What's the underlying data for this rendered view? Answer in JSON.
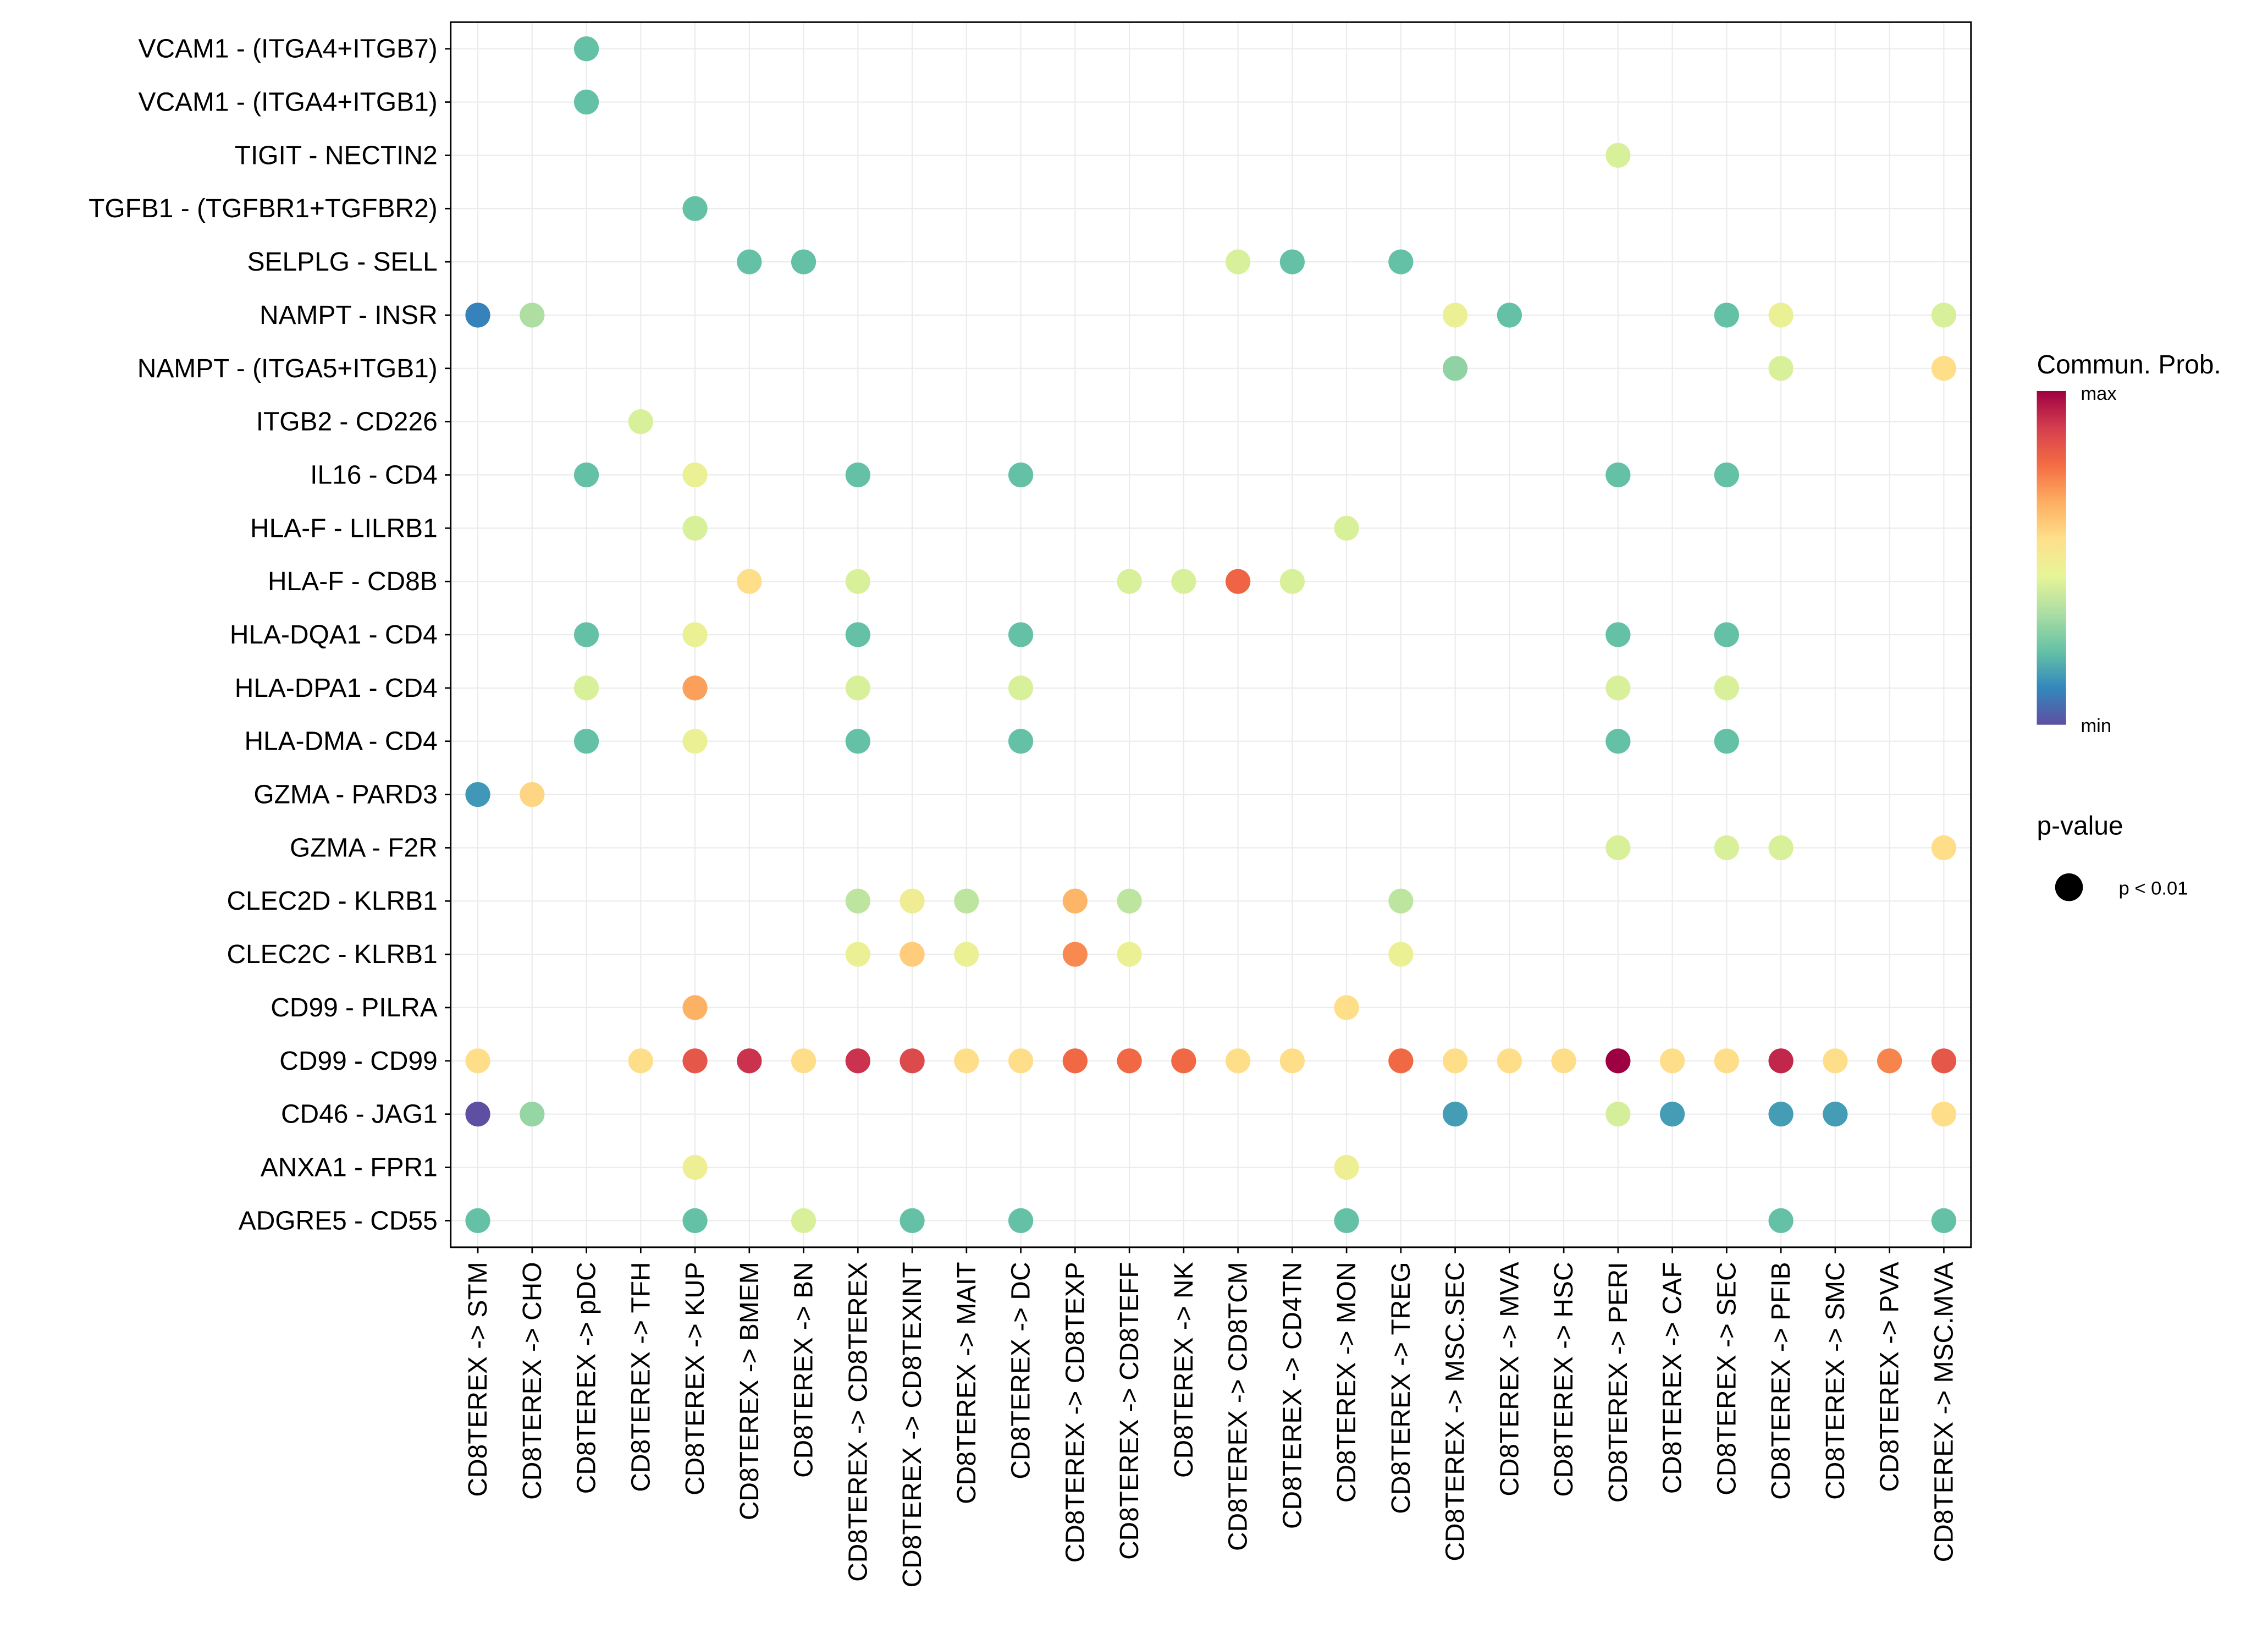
{
  "chart_data": {
    "type": "scatter",
    "subtype": "dot-plot",
    "title": "",
    "xlabel": "",
    "ylabel": "",
    "grid": true,
    "x": [
      "CD8TEREX -> STM",
      "CD8TEREX -> CHO",
      "CD8TEREX -> pDC",
      "CD8TEREX -> TFH",
      "CD8TEREX -> KUP",
      "CD8TEREX -> BMEM",
      "CD8TEREX -> BN",
      "CD8TEREX -> CD8TEREX",
      "CD8TEREX -> CD8TEXINT",
      "CD8TEREX -> MAIT",
      "CD8TEREX -> DC",
      "CD8TEREX -> CD8TEXP",
      "CD8TEREX -> CD8TEFF",
      "CD8TEREX -> NK",
      "CD8TEREX -> CD8TCM",
      "CD8TEREX -> CD4TN",
      "CD8TEREX -> MON",
      "CD8TEREX -> TREG",
      "CD8TEREX -> MSC.SEC",
      "CD8TEREX -> MVA",
      "CD8TEREX -> HSC",
      "CD8TEREX -> PERI",
      "CD8TEREX -> CAF",
      "CD8TEREX -> SEC",
      "CD8TEREX -> PFIB",
      "CD8TEREX -> SMC",
      "CD8TEREX -> PVA",
      "CD8TEREX -> MSC.MVA"
    ],
    "y": [
      "VCAM1 - (ITGA4+ITGB7)",
      "VCAM1 - (ITGA4+ITGB1)",
      "TIGIT - NECTIN2",
      "TGFB1 - (TGFBR1+TGFBR2)",
      "SELPLG - SELL",
      "NAMPT - INSR",
      "NAMPT - (ITGA5+ITGB1)",
      "ITGB2 - CD226",
      "IL16 - CD4",
      "HLA-F - LILRB1",
      "HLA-F - CD8B",
      "HLA-DQA1 - CD4",
      "HLA-DPA1 - CD4",
      "HLA-DMA - CD4",
      "GZMA - PARD3",
      "GZMA - F2R",
      "CLEC2D - KLRB1",
      "CLEC2C - KLRB1",
      "CD99 - PILRA",
      "CD99 - CD99",
      "CD46 - JAG1",
      "ANXA1 - FPR1",
      "ADGRE5 - CD55"
    ],
    "color_scale": {
      "name": "Spectral",
      "low_label": "min",
      "high_label": "max",
      "stops": [
        "#5e4fa2",
        "#3288bd",
        "#66c2a5",
        "#abdda4",
        "#e6f598",
        "#fee08b",
        "#fdae61",
        "#f46d43",
        "#d53e4f",
        "#9e0142"
      ]
    },
    "legend": {
      "color_title": "Commun. Prob.",
      "size_title": "p-value",
      "size_entries": [
        "p < 0.01"
      ],
      "position": "right"
    },
    "points_note": "value = relative communication probability on 0 (min) .. 1 (max) scale; all points p < 0.01",
    "points": [
      {
        "y": "VCAM1 - (ITGA4+ITGB7)",
        "x": "CD8TEREX -> pDC",
        "value": 0.22
      },
      {
        "y": "VCAM1 - (ITGA4+ITGB1)",
        "x": "CD8TEREX -> pDC",
        "value": 0.22
      },
      {
        "y": "TIGIT - NECTIN2",
        "x": "CD8TEREX -> PERI",
        "value": 0.42
      },
      {
        "y": "TGFB1 - (TGFBR1+TGFBR2)",
        "x": "CD8TEREX -> KUP",
        "value": 0.22
      },
      {
        "y": "SELPLG - SELL",
        "x": "CD8TEREX -> BMEM",
        "value": 0.22
      },
      {
        "y": "SELPLG - SELL",
        "x": "CD8TEREX -> BN",
        "value": 0.22
      },
      {
        "y": "SELPLG - SELL",
        "x": "CD8TEREX -> CD8TCM",
        "value": 0.42
      },
      {
        "y": "SELPLG - SELL",
        "x": "CD8TEREX -> CD4TN",
        "value": 0.22
      },
      {
        "y": "SELPLG - SELL",
        "x": "CD8TEREX -> TREG",
        "value": 0.22
      },
      {
        "y": "NAMPT - INSR",
        "x": "CD8TEREX -> STM",
        "value": 0.1
      },
      {
        "y": "NAMPT - INSR",
        "x": "CD8TEREX -> CHO",
        "value": 0.34
      },
      {
        "y": "NAMPT - INSR",
        "x": "CD8TEREX -> MSC.SEC",
        "value": 0.47
      },
      {
        "y": "NAMPT - INSR",
        "x": "CD8TEREX -> MVA",
        "value": 0.22
      },
      {
        "y": "NAMPT - INSR",
        "x": "CD8TEREX -> SEC",
        "value": 0.22
      },
      {
        "y": "NAMPT - INSR",
        "x": "CD8TEREX -> PFIB",
        "value": 0.47
      },
      {
        "y": "NAMPT - INSR",
        "x": "CD8TEREX -> MSC.MVA",
        "value": 0.42
      },
      {
        "y": "NAMPT - (ITGA5+ITGB1)",
        "x": "CD8TEREX -> MSC.SEC",
        "value": 0.29
      },
      {
        "y": "NAMPT - (ITGA5+ITGB1)",
        "x": "CD8TEREX -> PFIB",
        "value": 0.42
      },
      {
        "y": "NAMPT - (ITGA5+ITGB1)",
        "x": "CD8TEREX -> MSC.MVA",
        "value": 0.56
      },
      {
        "y": "ITGB2 - CD226",
        "x": "CD8TEREX -> TFH",
        "value": 0.42
      },
      {
        "y": "IL16 - CD4",
        "x": "CD8TEREX -> pDC",
        "value": 0.22
      },
      {
        "y": "IL16 - CD4",
        "x": "CD8TEREX -> KUP",
        "value": 0.47
      },
      {
        "y": "IL16 - CD4",
        "x": "CD8TEREX -> CD8TEREX",
        "value": 0.22
      },
      {
        "y": "IL16 - CD4",
        "x": "CD8TEREX -> DC",
        "value": 0.22
      },
      {
        "y": "IL16 - CD4",
        "x": "CD8TEREX -> PERI",
        "value": 0.22
      },
      {
        "y": "IL16 - CD4",
        "x": "CD8TEREX -> SEC",
        "value": 0.22
      },
      {
        "y": "HLA-F - LILRB1",
        "x": "CD8TEREX -> KUP",
        "value": 0.42
      },
      {
        "y": "HLA-F - LILRB1",
        "x": "CD8TEREX -> MON",
        "value": 0.42
      },
      {
        "y": "HLA-F - CD8B",
        "x": "CD8TEREX -> BMEM",
        "value": 0.56
      },
      {
        "y": "HLA-F - CD8B",
        "x": "CD8TEREX -> CD8TEREX",
        "value": 0.42
      },
      {
        "y": "HLA-F - CD8B",
        "x": "CD8TEREX -> CD8TEFF",
        "value": 0.42
      },
      {
        "y": "HLA-F - CD8B",
        "x": "CD8TEREX -> NK",
        "value": 0.42
      },
      {
        "y": "HLA-F - CD8B",
        "x": "CD8TEREX -> CD8TCM",
        "value": 0.8
      },
      {
        "y": "HLA-F - CD8B",
        "x": "CD8TEREX -> CD4TN",
        "value": 0.42
      },
      {
        "y": "HLA-DQA1 - CD4",
        "x": "CD8TEREX -> pDC",
        "value": 0.22
      },
      {
        "y": "HLA-DQA1 - CD4",
        "x": "CD8TEREX -> KUP",
        "value": 0.47
      },
      {
        "y": "HLA-DQA1 - CD4",
        "x": "CD8TEREX -> CD8TEREX",
        "value": 0.22
      },
      {
        "y": "HLA-DQA1 - CD4",
        "x": "CD8TEREX -> DC",
        "value": 0.22
      },
      {
        "y": "HLA-DQA1 - CD4",
        "x": "CD8TEREX -> PERI",
        "value": 0.22
      },
      {
        "y": "HLA-DQA1 - CD4",
        "x": "CD8TEREX -> SEC",
        "value": 0.22
      },
      {
        "y": "HLA-DPA1 - CD4",
        "x": "CD8TEREX -> pDC",
        "value": 0.42
      },
      {
        "y": "HLA-DPA1 - CD4",
        "x": "CD8TEREX -> KUP",
        "value": 0.69
      },
      {
        "y": "HLA-DPA1 - CD4",
        "x": "CD8TEREX -> CD8TEREX",
        "value": 0.42
      },
      {
        "y": "HLA-DPA1 - CD4",
        "x": "CD8TEREX -> DC",
        "value": 0.42
      },
      {
        "y": "HLA-DPA1 - CD4",
        "x": "CD8TEREX -> PERI",
        "value": 0.42
      },
      {
        "y": "HLA-DPA1 - CD4",
        "x": "CD8TEREX -> SEC",
        "value": 0.42
      },
      {
        "y": "HLA-DMA - CD4",
        "x": "CD8TEREX -> pDC",
        "value": 0.22
      },
      {
        "y": "HLA-DMA - CD4",
        "x": "CD8TEREX -> KUP",
        "value": 0.47
      },
      {
        "y": "HLA-DMA - CD4",
        "x": "CD8TEREX -> CD8TEREX",
        "value": 0.22
      },
      {
        "y": "HLA-DMA - CD4",
        "x": "CD8TEREX -> DC",
        "value": 0.22
      },
      {
        "y": "HLA-DMA - CD4",
        "x": "CD8TEREX -> PERI",
        "value": 0.22
      },
      {
        "y": "HLA-DMA - CD4",
        "x": "CD8TEREX -> SEC",
        "value": 0.22
      },
      {
        "y": "GZMA - PARD3",
        "x": "CD8TEREX -> STM",
        "value": 0.14
      },
      {
        "y": "GZMA - PARD3",
        "x": "CD8TEREX -> CHO",
        "value": 0.58
      },
      {
        "y": "GZMA - F2R",
        "x": "CD8TEREX -> PERI",
        "value": 0.42
      },
      {
        "y": "GZMA - F2R",
        "x": "CD8TEREX -> SEC",
        "value": 0.42
      },
      {
        "y": "GZMA - F2R",
        "x": "CD8TEREX -> PFIB",
        "value": 0.42
      },
      {
        "y": "GZMA - F2R",
        "x": "CD8TEREX -> MSC.MVA",
        "value": 0.56
      },
      {
        "y": "CLEC2D - KLRB1",
        "x": "CD8TEREX -> CD8TEREX",
        "value": 0.37
      },
      {
        "y": "CLEC2D - KLRB1",
        "x": "CD8TEREX -> CD8TEXINT",
        "value": 0.49
      },
      {
        "y": "CLEC2D - KLRB1",
        "x": "CD8TEREX -> MAIT",
        "value": 0.37
      },
      {
        "y": "CLEC2D - KLRB1",
        "x": "CD8TEREX -> CD8TEXP",
        "value": 0.65
      },
      {
        "y": "CLEC2D - KLRB1",
        "x": "CD8TEREX -> CD8TEFF",
        "value": 0.37
      },
      {
        "y": "CLEC2D - KLRB1",
        "x": "CD8TEREX -> TREG",
        "value": 0.37
      },
      {
        "y": "CLEC2C - KLRB1",
        "x": "CD8TEREX -> CD8TEREX",
        "value": 0.47
      },
      {
        "y": "CLEC2C - KLRB1",
        "x": "CD8TEREX -> CD8TEXINT",
        "value": 0.6
      },
      {
        "y": "CLEC2C - KLRB1",
        "x": "CD8TEREX -> MAIT",
        "value": 0.47
      },
      {
        "y": "CLEC2C - KLRB1",
        "x": "CD8TEREX -> CD8TEXP",
        "value": 0.73
      },
      {
        "y": "CLEC2C - KLRB1",
        "x": "CD8TEREX -> CD8TEFF",
        "value": 0.47
      },
      {
        "y": "CLEC2C - KLRB1",
        "x": "CD8TEREX -> TREG",
        "value": 0.47
      },
      {
        "y": "CD99 - PILRA",
        "x": "CD8TEREX -> KUP",
        "value": 0.66
      },
      {
        "y": "CD99 - PILRA",
        "x": "CD8TEREX -> MON",
        "value": 0.56
      },
      {
        "y": "CD99 - CD99",
        "x": "CD8TEREX -> STM",
        "value": 0.56
      },
      {
        "y": "CD99 - CD99",
        "x": "CD8TEREX -> TFH",
        "value": 0.56
      },
      {
        "y": "CD99 - CD99",
        "x": "CD8TEREX -> KUP",
        "value": 0.83
      },
      {
        "y": "CD99 - CD99",
        "x": "CD8TEREX -> BMEM",
        "value": 0.91
      },
      {
        "y": "CD99 - CD99",
        "x": "CD8TEREX -> BN",
        "value": 0.56
      },
      {
        "y": "CD99 - CD99",
        "x": "CD8TEREX -> CD8TEREX",
        "value": 0.91
      },
      {
        "y": "CD99 - CD99",
        "x": "CD8TEREX -> CD8TEXINT",
        "value": 0.86
      },
      {
        "y": "CD99 - CD99",
        "x": "CD8TEREX -> MAIT",
        "value": 0.56
      },
      {
        "y": "CD99 - CD99",
        "x": "CD8TEREX -> DC",
        "value": 0.56
      },
      {
        "y": "CD99 - CD99",
        "x": "CD8TEREX -> CD8TEXP",
        "value": 0.79
      },
      {
        "y": "CD99 - CD99",
        "x": "CD8TEREX -> CD8TEFF",
        "value": 0.79
      },
      {
        "y": "CD99 - CD99",
        "x": "CD8TEREX -> NK",
        "value": 0.79
      },
      {
        "y": "CD99 - CD99",
        "x": "CD8TEREX -> CD8TCM",
        "value": 0.56
      },
      {
        "y": "CD99 - CD99",
        "x": "CD8TEREX -> CD4TN",
        "value": 0.56
      },
      {
        "y": "CD99 - CD99",
        "x": "CD8TEREX -> TREG",
        "value": 0.79
      },
      {
        "y": "CD99 - CD99",
        "x": "CD8TEREX -> MSC.SEC",
        "value": 0.56
      },
      {
        "y": "CD99 - CD99",
        "x": "CD8TEREX -> MVA",
        "value": 0.56
      },
      {
        "y": "CD99 - CD99",
        "x": "CD8TEREX -> HSC",
        "value": 0.56
      },
      {
        "y": "CD99 - CD99",
        "x": "CD8TEREX -> PERI",
        "value": 1.0
      },
      {
        "y": "CD99 - CD99",
        "x": "CD8TEREX -> CAF",
        "value": 0.56
      },
      {
        "y": "CD99 - CD99",
        "x": "CD8TEREX -> SEC",
        "value": 0.56
      },
      {
        "y": "CD99 - CD99",
        "x": "CD8TEREX -> PFIB",
        "value": 0.93
      },
      {
        "y": "CD99 - CD99",
        "x": "CD8TEREX -> SMC",
        "value": 0.56
      },
      {
        "y": "CD99 - CD99",
        "x": "CD8TEREX -> PVA",
        "value": 0.74
      },
      {
        "y": "CD99 - CD99",
        "x": "CD8TEREX -> MSC.MVA",
        "value": 0.83
      },
      {
        "y": "CD46 - JAG1",
        "x": "CD8TEREX -> STM",
        "value": 0.0
      },
      {
        "y": "CD46 - JAG1",
        "x": "CD8TEREX -> CHO",
        "value": 0.3
      },
      {
        "y": "CD46 - JAG1",
        "x": "CD8TEREX -> MSC.SEC",
        "value": 0.15
      },
      {
        "y": "CD46 - JAG1",
        "x": "CD8TEREX -> PERI",
        "value": 0.41
      },
      {
        "y": "CD46 - JAG1",
        "x": "CD8TEREX -> CAF",
        "value": 0.15
      },
      {
        "y": "CD46 - JAG1",
        "x": "CD8TEREX -> PFIB",
        "value": 0.15
      },
      {
        "y": "CD46 - JAG1",
        "x": "CD8TEREX -> SMC",
        "value": 0.15
      },
      {
        "y": "CD46 - JAG1",
        "x": "CD8TEREX -> MSC.MVA",
        "value": 0.56
      },
      {
        "y": "ANXA1 - FPR1",
        "x": "CD8TEREX -> KUP",
        "value": 0.48
      },
      {
        "y": "ANXA1 - FPR1",
        "x": "CD8TEREX -> MON",
        "value": 0.48
      },
      {
        "y": "ADGRE5 - CD55",
        "x": "CD8TEREX -> STM",
        "value": 0.22
      },
      {
        "y": "ADGRE5 - CD55",
        "x": "CD8TEREX -> KUP",
        "value": 0.22
      },
      {
        "y": "ADGRE5 - CD55",
        "x": "CD8TEREX -> BN",
        "value": 0.42
      },
      {
        "y": "ADGRE5 - CD55",
        "x": "CD8TEREX -> CD8TEXINT",
        "value": 0.22
      },
      {
        "y": "ADGRE5 - CD55",
        "x": "CD8TEREX -> DC",
        "value": 0.22
      },
      {
        "y": "ADGRE5 - CD55",
        "x": "CD8TEREX -> MON",
        "value": 0.22
      },
      {
        "y": "ADGRE5 - CD55",
        "x": "CD8TEREX -> PFIB",
        "value": 0.22
      },
      {
        "y": "ADGRE5 - CD55",
        "x": "CD8TEREX -> MSC.MVA",
        "value": 0.22
      }
    ]
  }
}
